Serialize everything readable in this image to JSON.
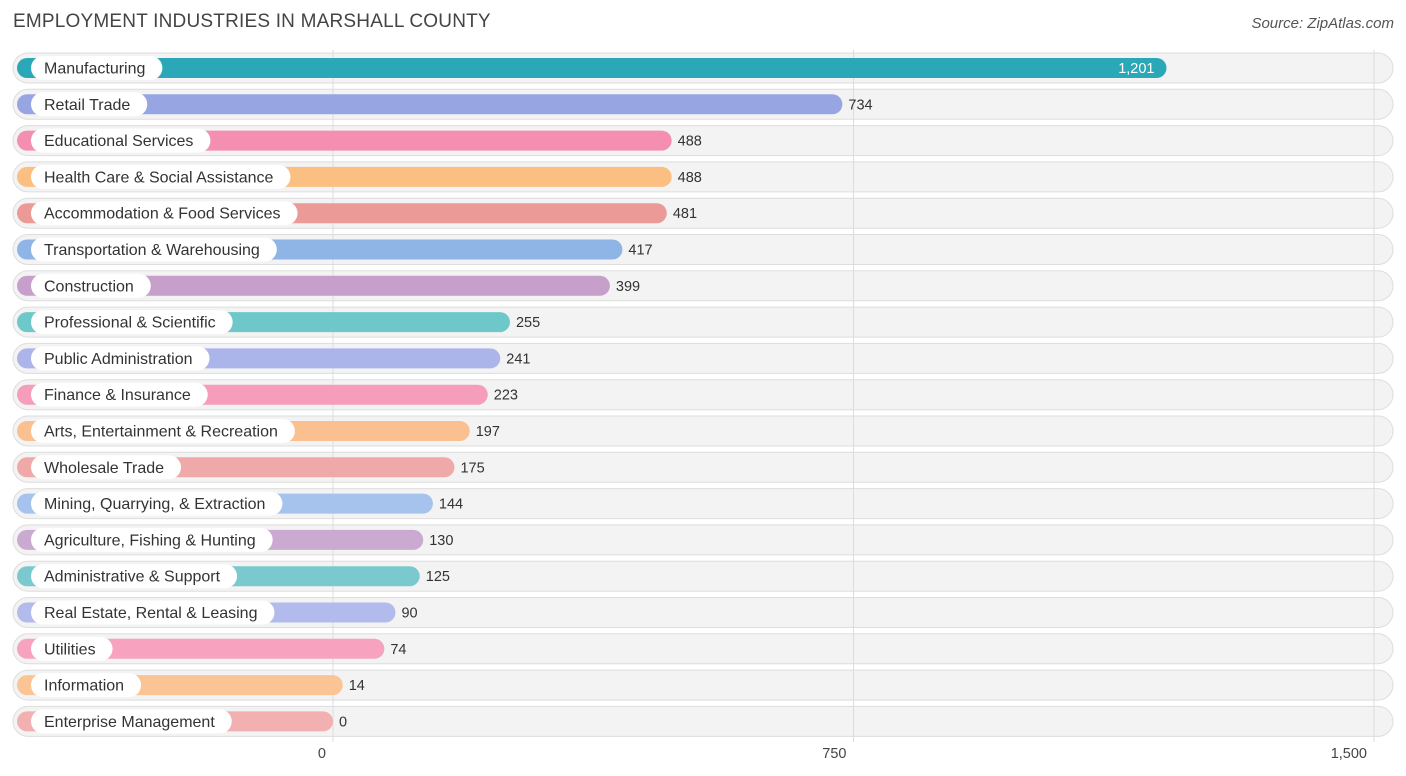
{
  "header": {
    "title": "EMPLOYMENT INDUSTRIES IN MARSHALL COUNTY",
    "source": "Source: ZipAtlas.com"
  },
  "chart_data": {
    "type": "bar",
    "orientation": "horizontal",
    "title": "EMPLOYMENT INDUSTRIES IN MARSHALL COUNTY",
    "xlabel": "",
    "ylabel": "",
    "xlim": [
      0,
      1500
    ],
    "ticks": [
      {
        "value": 0,
        "label": "0"
      },
      {
        "value": 750,
        "label": "750"
      },
      {
        "value": 1500,
        "label": "1,500"
      }
    ],
    "grid": true,
    "categories": [
      "Manufacturing",
      "Retail Trade",
      "Educational Services",
      "Health Care & Social Assistance",
      "Accommodation & Food Services",
      "Transportation & Warehousing",
      "Construction",
      "Professional & Scientific",
      "Public Administration",
      "Finance & Insurance",
      "Arts, Entertainment & Recreation",
      "Wholesale Trade",
      "Mining, Quarrying, & Extraction",
      "Agriculture, Fishing & Hunting",
      "Administrative & Support",
      "Real Estate, Rental & Leasing",
      "Utilities",
      "Information",
      "Enterprise Management"
    ],
    "values": [
      1201,
      734,
      488,
      488,
      481,
      417,
      399,
      255,
      241,
      223,
      197,
      175,
      144,
      130,
      125,
      90,
      74,
      14,
      0
    ],
    "value_labels": [
      "1,201",
      "734",
      "488",
      "488",
      "481",
      "417",
      "399",
      "255",
      "241",
      "223",
      "197",
      "175",
      "144",
      "130",
      "125",
      "90",
      "74",
      "14",
      "0"
    ],
    "colors": [
      "#2aa8b8",
      "#97a6e3",
      "#f48fb1",
      "#fbbf82",
      "#ec9a98",
      "#8fb5e6",
      "#c6a0ca",
      "#6ec8ca",
      "#abb5ea",
      "#f59dba",
      "#fbc08f",
      "#f0a9a9",
      "#a5c3ec",
      "#cbaad1",
      "#7ac9cf",
      "#b3bbec",
      "#f7a3bf",
      "#fbc494",
      "#f2b0b0"
    ]
  }
}
